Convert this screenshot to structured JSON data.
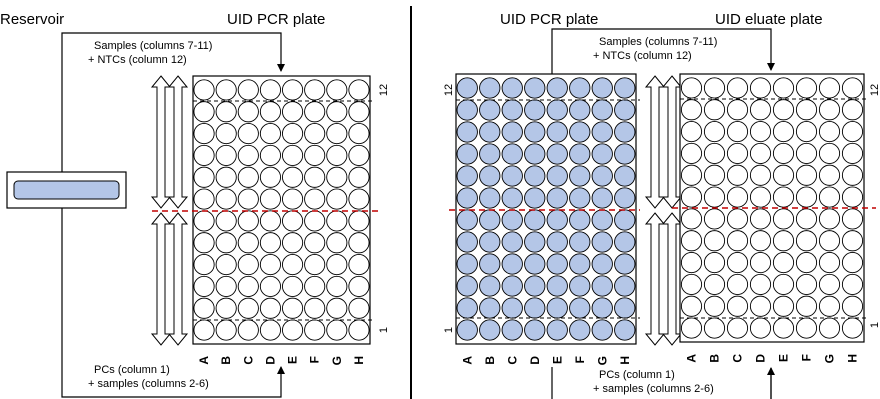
{
  "left_panel": {
    "reservoir_label": "Reservoir",
    "pcr_plate_label": "UID PCR plate",
    "top_note_line1": "Samples (columns 7-11)",
    "top_note_line2": "+ NTCs (column 12)",
    "bottom_note_line1": "PCs (column 1)",
    "bottom_note_line2": "+ samples (columns 2-6)",
    "row_letters": [
      "A",
      "B",
      "C",
      "D",
      "E",
      "F",
      "G",
      "H"
    ],
    "column_top_label": "12",
    "column_bottom_label": "1"
  },
  "right_panel": {
    "pcr_plate_label": "UID PCR plate",
    "eluate_plate_label": "UID eluate plate",
    "top_note_line1": "Samples (columns 7-11)",
    "top_note_line2": "+ NTCs (column 12)",
    "bottom_note_line1": "PCs (column 1)",
    "bottom_note_line2": "+ samples (columns 2-6)",
    "row_letters": [
      "A",
      "B",
      "C",
      "D",
      "E",
      "F",
      "G",
      "H"
    ],
    "column_top_label": "12",
    "column_bottom_label": "1"
  },
  "colors": {
    "filled_well": "#b4c6e7",
    "empty_well": "#ffffff",
    "well_stroke": "#000000",
    "split_line": "#c00000",
    "divider": "#000000"
  }
}
